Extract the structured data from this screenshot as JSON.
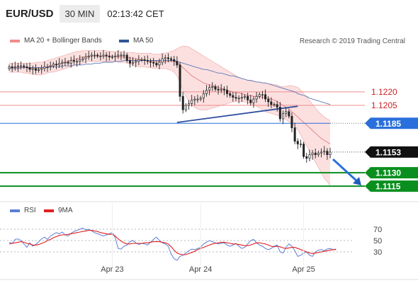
{
  "header": {
    "pair": "EUR/USD",
    "timeframe": "30 MIN",
    "clock": "02:13:42 CET"
  },
  "legend": {
    "bollinger": {
      "label": "MA 20 + Bollinger Bands",
      "color": "#f08c8c"
    },
    "ma50": {
      "label": "MA 50",
      "color": "#2e5596"
    },
    "rsi": {
      "label": "RSI",
      "color": "#5b7fd6"
    },
    "rsi_ma": {
      "label": "9MA",
      "color": "#e02020"
    }
  },
  "source": "Research © 2019 Trading Central",
  "price_levels": [
    {
      "label": "1.1220",
      "value": 1.122,
      "style": "pink-line"
    },
    {
      "label": "1.1205",
      "value": 1.1205,
      "style": "pink-line"
    },
    {
      "label": "1.1185",
      "value": 1.1185,
      "style": "blue-box"
    },
    {
      "label": "1.1153",
      "value": 1.1153,
      "style": "black-box"
    },
    {
      "label": "1.1130",
      "value": 1.113,
      "style": "green-box"
    },
    {
      "label": "1.1115",
      "value": 1.1115,
      "style": "green-box"
    }
  ],
  "chart_data": {
    "type": "candlestick",
    "y_range": [
      1.1108,
      1.1268
    ],
    "price": [
      1.1248,
      1.1247,
      1.1248,
      1.1249,
      1.1249,
      1.1248,
      1.1247,
      1.1245,
      1.1246,
      1.1244,
      1.1245,
      1.1246,
      1.1248,
      1.1248,
      1.1249,
      1.1251,
      1.125,
      1.1252,
      1.1253,
      1.1253,
      1.1252,
      1.1255,
      1.1254,
      1.1254,
      1.1256,
      1.1257,
      1.1259,
      1.126,
      1.1261,
      1.1261,
      1.126,
      1.126,
      1.1261,
      1.126,
      1.1259,
      1.1259,
      1.126,
      1.1261,
      1.1261,
      1.1261,
      1.1255,
      1.1252,
      1.1253,
      1.1254,
      1.1256,
      1.1256,
      1.1255,
      1.1254,
      1.1253,
      1.1252,
      1.125,
      1.1253,
      1.1257,
      1.1258,
      1.1257,
      1.1256,
      1.1254,
      1.125,
      1.1215,
      1.12,
      1.1205,
      1.1207,
      1.1211,
      1.1212,
      1.1212,
      1.1213,
      1.1218,
      1.1222,
      1.1225,
      1.1226,
      1.1223,
      1.1222,
      1.1223,
      1.1222,
      1.1218,
      1.1216,
      1.1214,
      1.1213,
      1.1213,
      1.1214,
      1.1215,
      1.1211,
      1.1208,
      1.1212,
      1.1215,
      1.1217,
      1.1217,
      1.1212,
      1.1209,
      1.1206,
      1.1206,
      1.1203,
      1.119,
      1.1196,
      1.1198,
      1.1193,
      1.118,
      1.1165,
      1.1162,
      1.1162,
      1.1148,
      1.1146,
      1.115,
      1.1152,
      1.115,
      1.1152,
      1.1153,
      1.1154,
      1.115,
      1.1153
    ],
    "ma50": [
      1.1246,
      1.1246,
      1.1246,
      1.1246,
      1.1247,
      1.1247,
      1.1247,
      1.1247,
      1.1247,
      1.1247,
      1.1247,
      1.1247,
      1.1247,
      1.1247,
      1.1248,
      1.1248,
      1.1248,
      1.1248,
      1.1249,
      1.1249,
      1.1249,
      1.1249,
      1.125,
      1.125,
      1.125,
      1.125,
      1.1251,
      1.1251,
      1.1251,
      1.1252,
      1.1252,
      1.1252,
      1.1253,
      1.1253,
      1.1253,
      1.1253,
      1.1254,
      1.1254,
      1.1254,
      1.1255,
      1.1255,
      1.1255,
      1.1255,
      1.1255,
      1.1255,
      1.1255,
      1.1255,
      1.1255,
      1.1255,
      1.1255,
      1.1255,
      1.1255,
      1.1255,
      1.1255,
      1.1255,
      1.1255,
      1.1255,
      1.1254,
      1.1253,
      1.1252,
      1.1251,
      1.125,
      1.1249,
      1.1248,
      1.1247,
      1.1246,
      1.1245,
      1.1245,
      1.1244,
      1.1243,
      1.1242,
      1.1241,
      1.1241,
      1.124,
      1.1239,
      1.1238,
      1.1238,
      1.1237,
      1.1236,
      1.1235,
      1.1234,
      1.1233,
      1.1233,
      1.1232,
      1.1231,
      1.1231,
      1.123,
      1.123,
      1.1229,
      1.1228,
      1.1227,
      1.1226,
      1.1225,
      1.1224,
      1.1223,
      1.1222,
      1.1221,
      1.122,
      1.1218,
      1.1217,
      1.1216,
      1.1215,
      1.1213,
      1.1212,
      1.1211,
      1.121,
      1.1209,
      1.1208,
      1.1207,
      1.1206
    ],
    "bb_upper": [
      1.1252,
      1.1252,
      1.1252,
      1.1252,
      1.1252,
      1.1252,
      1.1252,
      1.1252,
      1.1252,
      1.1253,
      1.1253,
      1.1253,
      1.1254,
      1.1255,
      1.1256,
      1.1257,
      1.1258,
      1.1259,
      1.126,
      1.1261,
      1.1262,
      1.1263,
      1.1264,
      1.1265,
      1.1265,
      1.1266,
      1.1266,
      1.1266,
      1.1266,
      1.1266,
      1.1266,
      1.1266,
      1.1266,
      1.1266,
      1.1265,
      1.1265,
      1.1265,
      1.1265,
      1.1265,
      1.1264,
      1.1264,
      1.1264,
      1.1264,
      1.1263,
      1.1263,
      1.1263,
      1.1263,
      1.1263,
      1.1263,
      1.1262,
      1.1262,
      1.1262,
      1.1263,
      1.1263,
      1.1264,
      1.1265,
      1.1266,
      1.1268,
      1.127,
      1.1271,
      1.1271,
      1.127,
      1.1268,
      1.1266,
      1.1264,
      1.1262,
      1.126,
      1.1258,
      1.1256,
      1.1254,
      1.1252,
      1.125,
      1.1248,
      1.1246,
      1.1244,
      1.1242,
      1.124,
      1.1238,
      1.1236,
      1.1235,
      1.1234,
      1.1233,
      1.1232,
      1.1232,
      1.1231,
      1.1231,
      1.123,
      1.123,
      1.1229,
      1.1229,
      1.1228,
      1.1228,
      1.1226,
      1.1226,
      1.1226,
      1.1227,
      1.1227,
      1.1226,
      1.1225,
      1.1222,
      1.1218,
      1.1214,
      1.121,
      1.1206,
      1.1202,
      1.1198,
      1.1195,
      1.1192,
      1.119,
      1.1188
    ],
    "bb_mid": [
      1.1247,
      1.1247,
      1.1247,
      1.1247,
      1.1247,
      1.1247,
      1.1247,
      1.1246,
      1.1246,
      1.1246,
      1.1246,
      1.1247,
      1.1247,
      1.1248,
      1.1249,
      1.125,
      1.125,
      1.1251,
      1.1252,
      1.1253,
      1.1254,
      1.1255,
      1.1256,
      1.1257,
      1.1258,
      1.1259,
      1.1259,
      1.126,
      1.126,
      1.126,
      1.126,
      1.126,
      1.126,
      1.126,
      1.126,
      1.126,
      1.126,
      1.1259,
      1.1259,
      1.1259,
      1.1258,
      1.1258,
      1.1257,
      1.1257,
      1.1256,
      1.1256,
      1.1255,
      1.1255,
      1.1255,
      1.1254,
      1.1254,
      1.1254,
      1.1254,
      1.1254,
      1.1254,
      1.1254,
      1.1254,
      1.1253,
      1.125,
      1.1247,
      1.1244,
      1.1241,
      1.1238,
      1.1236,
      1.1234,
      1.1232,
      1.123,
      1.1229,
      1.1228,
      1.1227,
      1.1226,
      1.1225,
      1.1224,
      1.1223,
      1.1222,
      1.1221,
      1.122,
      1.1219,
      1.1219,
      1.1218,
      1.1217,
      1.1216,
      1.1216,
      1.1215,
      1.1215,
      1.1215,
      1.1214,
      1.1214,
      1.1213,
      1.1212,
      1.1211,
      1.1209,
      1.1207,
      1.1205,
      1.1203,
      1.1201,
      1.1198,
      1.1195,
      1.1192,
      1.1189,
      1.1186,
      1.1183,
      1.118,
      1.1177,
      1.1174,
      1.1171,
      1.1168,
      1.1166,
      1.1164,
      1.1162
    ],
    "bb_lower": [
      1.1242,
      1.1242,
      1.1242,
      1.1242,
      1.1242,
      1.1241,
      1.1241,
      1.124,
      1.124,
      1.1239,
      1.1239,
      1.1239,
      1.124,
      1.1241,
      1.1242,
      1.1242,
      1.1243,
      1.1244,
      1.1245,
      1.1246,
      1.1247,
      1.1248,
      1.1249,
      1.125,
      1.1251,
      1.1252,
      1.1253,
      1.1254,
      1.1254,
      1.1254,
      1.1254,
      1.1254,
      1.1254,
      1.1254,
      1.1254,
      1.1254,
      1.1254,
      1.1253,
      1.1253,
      1.1253,
      1.1252,
      1.1251,
      1.125,
      1.1249,
      1.1248,
      1.1248,
      1.1248,
      1.1247,
      1.1247,
      1.1246,
      1.1246,
      1.1246,
      1.1246,
      1.1246,
      1.1245,
      1.1244,
      1.1242,
      1.1238,
      1.123,
      1.1222,
      1.1215,
      1.121,
      1.1206,
      1.1203,
      1.1201,
      1.12,
      1.12,
      1.12,
      1.1201,
      1.1202,
      1.1203,
      1.1204,
      1.1205,
      1.1206,
      1.1207,
      1.1208,
      1.1209,
      1.1209,
      1.1209,
      1.1209,
      1.1209,
      1.1208,
      1.1207,
      1.1206,
      1.1204,
      1.1202,
      1.12,
      1.1198,
      1.1197,
      1.1196,
      1.1195,
      1.1194,
      1.1193,
      1.1191,
      1.1189,
      1.1187,
      1.1185,
      1.1182,
      1.1178,
      1.1172,
      1.1166,
      1.116,
      1.1154,
      1.1148,
      1.1142,
      1.1136,
      1.113,
      1.1124,
      1.112,
      1.1116
    ],
    "trendline": {
      "from": [
        57,
        1.1186
      ],
      "to": [
        98,
        1.1204
      ]
    },
    "forecast": {
      "from": 1.1145,
      "to": 1.1115
    },
    "x_ticks": [
      {
        "label": "Apr 23",
        "index": 35
      },
      {
        "label": "Apr 24",
        "index": 65
      },
      {
        "label": "Apr 25",
        "index": 100
      }
    ],
    "rsi": {
      "levels": [
        70,
        50,
        30
      ],
      "range": [
        10,
        85
      ],
      "rsi": [
        47,
        45,
        52,
        53,
        50,
        44,
        38,
        46,
        40,
        43,
        48,
        53,
        56,
        52,
        58,
        61,
        64,
        62,
        65,
        60,
        58,
        63,
        66,
        68,
        70,
        72,
        69,
        70,
        67,
        64,
        62,
        60,
        58,
        60,
        62,
        64,
        55,
        36,
        35,
        40,
        42,
        48,
        50,
        46,
        43,
        45,
        44,
        42,
        47,
        52,
        56,
        50,
        46,
        44,
        40,
        26,
        18,
        15,
        22,
        24,
        28,
        32,
        35,
        34,
        36,
        38,
        44,
        47,
        50,
        48,
        46,
        44,
        45,
        46,
        42,
        40,
        42,
        45,
        40,
        36,
        38,
        44,
        50,
        52,
        46,
        42,
        40,
        36,
        34,
        36,
        40,
        42,
        30,
        28,
        38,
        44,
        40,
        32,
        22,
        24,
        28,
        30,
        24,
        22,
        30,
        33,
        34,
        32,
        35,
        36,
        34,
        35
      ],
      "ma9": [
        44,
        45,
        46,
        47,
        48,
        47,
        45,
        44,
        42,
        42,
        43,
        45,
        47,
        50,
        52,
        55,
        57,
        59,
        60,
        60,
        61,
        62,
        63,
        64,
        65,
        66,
        67,
        68,
        68,
        67,
        66,
        64,
        63,
        62,
        61,
        61,
        58,
        53,
        49,
        46,
        44,
        44,
        45,
        45,
        45,
        45,
        46,
        46,
        47,
        48,
        48,
        48,
        47,
        46,
        44,
        39,
        33,
        28,
        26,
        25,
        25,
        27,
        29,
        31,
        34,
        36,
        38,
        40,
        42,
        44,
        45,
        46,
        47,
        47,
        46,
        45,
        44,
        44,
        43,
        42,
        41,
        41,
        42,
        44,
        46,
        46,
        45,
        44,
        42,
        40,
        39,
        40,
        39,
        37,
        36,
        37,
        38,
        38,
        36,
        34,
        32,
        30,
        28,
        27,
        28,
        29,
        30,
        31,
        32,
        33,
        34,
        34
      ]
    }
  }
}
